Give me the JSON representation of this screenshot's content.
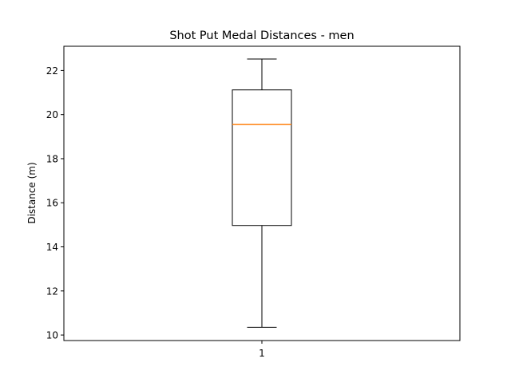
{
  "chart_data": {
    "type": "box",
    "title": "Shot Put Medal Distances - men",
    "xlabel": "",
    "ylabel": "Distance (m)",
    "categories": [
      "1"
    ],
    "boxes": [
      {
        "category": "1",
        "whisker_low": 10.35,
        "q1": 14.97,
        "median": 19.55,
        "q3": 21.12,
        "whisker_high": 22.52
      }
    ],
    "ylim": [
      9.75,
      23.1
    ],
    "yticks": [
      10,
      12,
      14,
      16,
      18,
      20,
      22
    ],
    "grid": false,
    "colors": {
      "box": "#000000",
      "median": "#ff7f0e",
      "whisker": "#000000"
    }
  }
}
